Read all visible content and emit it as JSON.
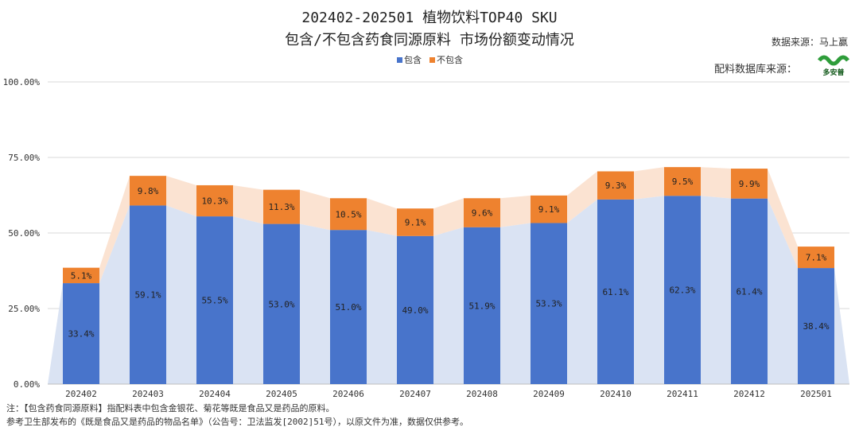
{
  "header": {
    "title_line1": "202402-202501 植物饮料TOP40 SKU",
    "title_line2": "包含/不包含药食同源原料 市场份额变动情况",
    "source_data": "数据来源：马上赢",
    "source_db": "配料数据库来源：",
    "logo_text": "多安普"
  },
  "notes": {
    "line1": "注：【包含药食同源原料】指配料表中包含金银花、菊花等既是食品又是药品的原料。",
    "line2": "参考卫生部发布的《既是食品又是药品的物品名单》（公告号：卫法监发[2002]51号），以原文件为准，数据仅供参考。"
  },
  "colors": {
    "include": "#4874CB",
    "exclude": "#EE822F",
    "include_area": "#DAE3F3",
    "exclude_area": "#FBE3D2"
  },
  "chart_data": {
    "type": "bar",
    "stacked": true,
    "categories": [
      "202402",
      "202403",
      "202404",
      "202405",
      "202406",
      "202407",
      "202408",
      "202409",
      "202410",
      "202411",
      "202412",
      "202501"
    ],
    "series": [
      {
        "name": "包含",
        "values": [
          33.4,
          59.1,
          55.5,
          53.0,
          51.0,
          49.0,
          51.9,
          53.3,
          61.1,
          62.3,
          61.4,
          38.4
        ],
        "labels": [
          "33.4%",
          "59.1%",
          "55.5%",
          "53.0%",
          "51.0%",
          "49.0%",
          "51.9%",
          "53.3%",
          "61.1%",
          "62.3%",
          "61.4%",
          "38.4%"
        ]
      },
      {
        "name": "不包含",
        "values": [
          5.1,
          9.8,
          10.3,
          11.3,
          10.5,
          9.1,
          9.6,
          9.1,
          9.3,
          9.5,
          9.9,
          7.1
        ],
        "labels": [
          "5.1%",
          "9.8%",
          "10.3%",
          "11.3%",
          "10.5%",
          "9.1%",
          "9.6%",
          "9.1%",
          "9.3%",
          "9.5%",
          "9.9%",
          "7.1%"
        ]
      }
    ],
    "ylim": [
      0,
      100
    ],
    "yticks": [
      0,
      25,
      50,
      75,
      100
    ],
    "ytick_labels": [
      "0.00%",
      "25.00%",
      "50.00%",
      "75.00%",
      "100.00%"
    ],
    "grid": true,
    "legend": "top-center"
  }
}
